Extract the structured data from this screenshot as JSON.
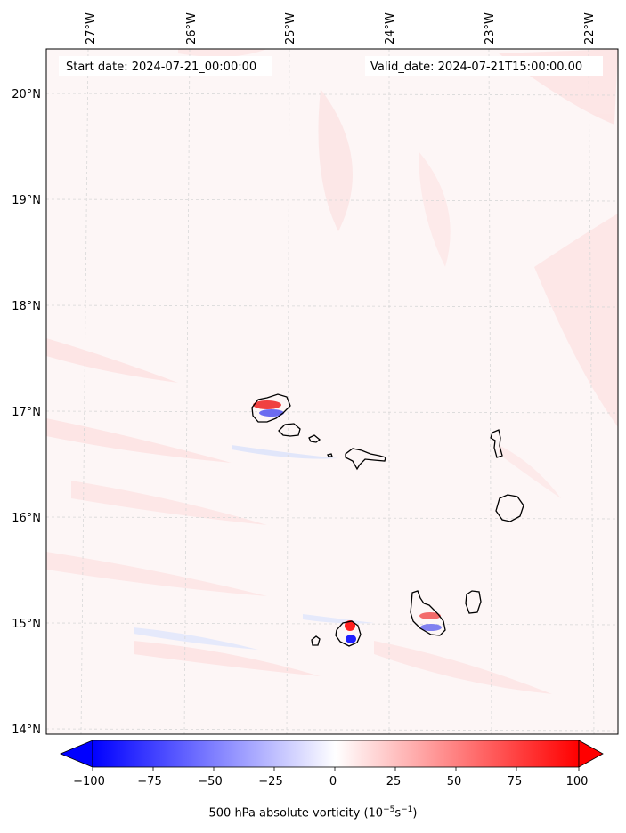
{
  "map": {
    "longitude_labels": [
      "27°W",
      "26°W",
      "25°W",
      "24°W",
      "23°W",
      "22°W"
    ],
    "latitude_labels": [
      "20°N",
      "19°N",
      "18°N",
      "17°N",
      "16°N",
      "15°N",
      "14°N"
    ],
    "start_date": "Start date: 2024-07-21_00:00:00",
    "valid_date": "Valid_date: 2024-07-21T15:00:00.00",
    "gridlines": true,
    "coastline_color": "#000000"
  },
  "colorbar": {
    "ticks": [
      "−100",
      "−75",
      "−50",
      "−25",
      "0",
      "25",
      "50",
      "75",
      "100"
    ],
    "title_prefix": "500 hPa absolute vorticity (10",
    "title_exp1": "−5",
    "title_mid": "s",
    "title_exp2": "−1",
    "title_suffix": ")",
    "extend": "both",
    "min_color": "#0000ff",
    "max_color": "#ff0000"
  }
}
